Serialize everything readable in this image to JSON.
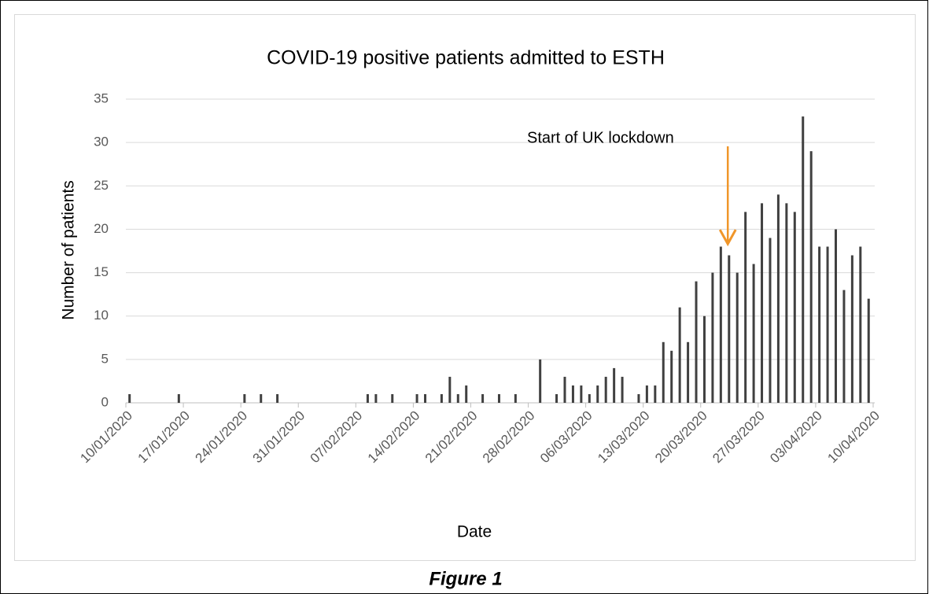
{
  "chart_data": {
    "type": "bar",
    "title": "COVID-19 positive patients admitted to ESTH",
    "x_label": "Date",
    "y_label": "Number of patients",
    "annotation": "Start of UK lockdown",
    "annotation_color": "#f0962a",
    "color": "#404040",
    "categories": [
      "10/01/2020",
      null,
      null,
      null,
      null,
      null,
      null,
      "17/01/2020",
      null,
      null,
      null,
      null,
      null,
      null,
      "24/01/2020",
      null,
      null,
      null,
      null,
      null,
      null,
      "31/01/2020",
      null,
      null,
      null,
      null,
      null,
      null,
      "07/02/2020",
      null,
      null,
      null,
      null,
      null,
      null,
      "14/02/2020",
      null,
      null,
      null,
      null,
      null,
      null,
      "21/02/2020",
      null,
      null,
      null,
      null,
      null,
      null,
      "28/02/2020",
      null,
      null,
      null,
      null,
      null,
      null,
      "06/03/2020",
      null,
      null,
      null,
      null,
      null,
      null,
      "13/03/2020",
      null,
      null,
      null,
      null,
      null,
      null,
      "20/03/2020",
      null,
      null,
      null,
      null,
      null,
      null,
      "27/03/2020",
      null,
      null,
      null,
      null,
      null,
      null,
      "03/04/2020",
      null,
      null,
      null,
      null,
      null,
      null,
      "10/04/2020"
    ],
    "values": [
      1,
      0,
      0,
      0,
      0,
      0,
      1,
      0,
      0,
      0,
      0,
      0,
      0,
      0,
      1,
      0,
      1,
      0,
      1,
      0,
      0,
      0,
      0,
      0,
      0,
      0,
      0,
      0,
      0,
      1,
      1,
      0,
      1,
      0,
      0,
      1,
      1,
      0,
      1,
      3,
      1,
      2,
      0,
      1,
      0,
      1,
      0,
      1,
      0,
      0,
      5,
      0,
      1,
      3,
      2,
      2,
      1,
      2,
      3,
      4,
      3,
      0,
      1,
      2,
      2,
      7,
      6,
      11,
      7,
      14,
      10,
      15,
      18,
      17,
      15,
      22,
      16,
      23,
      19,
      24,
      23,
      22,
      33,
      29,
      18,
      18,
      20,
      13,
      17,
      18,
      12,
      0
    ],
    "annotation_index": 73,
    "ylim": [
      0,
      35
    ],
    "yticks": [
      0,
      5,
      10,
      15,
      20,
      25,
      30,
      35
    ],
    "grid": true
  },
  "caption": "Figure 1"
}
